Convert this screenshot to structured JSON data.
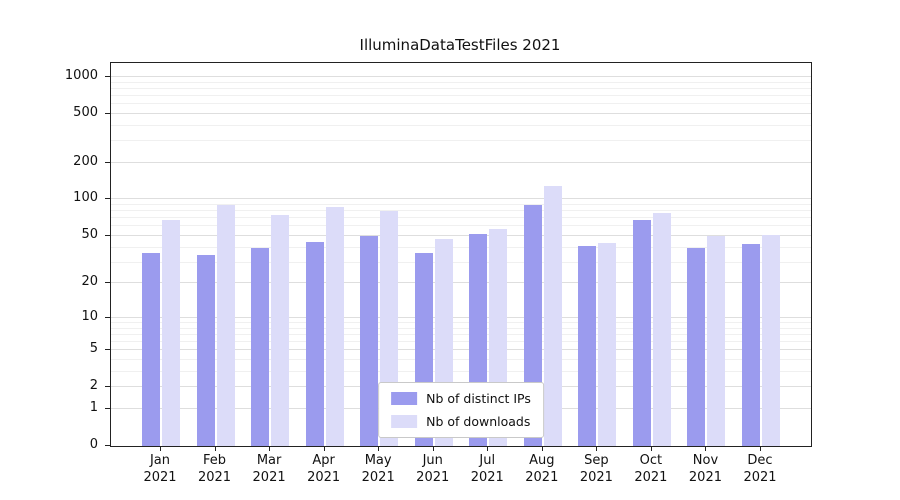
{
  "figure": {
    "title": "IlluminaDataTestFiles 2021"
  },
  "chart_data": {
    "type": "bar",
    "title": "IlluminaDataTestFiles 2021",
    "xlabel": "",
    "ylabel": "",
    "yscale": "log1p",
    "ylim": [
      0,
      1300
    ],
    "grid": true,
    "legend_position": "lower center",
    "yticks": [
      0,
      1,
      2,
      5,
      10,
      20,
      50,
      100,
      200,
      500,
      1000
    ],
    "categories": [
      "Jan 2021",
      "Feb 2021",
      "Mar 2021",
      "Apr 2021",
      "May 2021",
      "Jun 2021",
      "Jul 2021",
      "Aug 2021",
      "Sep 2021",
      "Oct 2021",
      "Nov 2021",
      "Dec 2021"
    ],
    "series": [
      {
        "name": "Nb of distinct IPs",
        "color": "#9b9bee",
        "values": [
          36,
          35,
          40,
          45,
          50,
          36,
          52,
          90,
          41,
          68,
          40,
          43
        ]
      },
      {
        "name": "Nb of downloads",
        "color": "#dcdcf9",
        "values": [
          68,
          90,
          75,
          87,
          80,
          47,
          57,
          130,
          44,
          78,
          50,
          51
        ]
      }
    ]
  }
}
